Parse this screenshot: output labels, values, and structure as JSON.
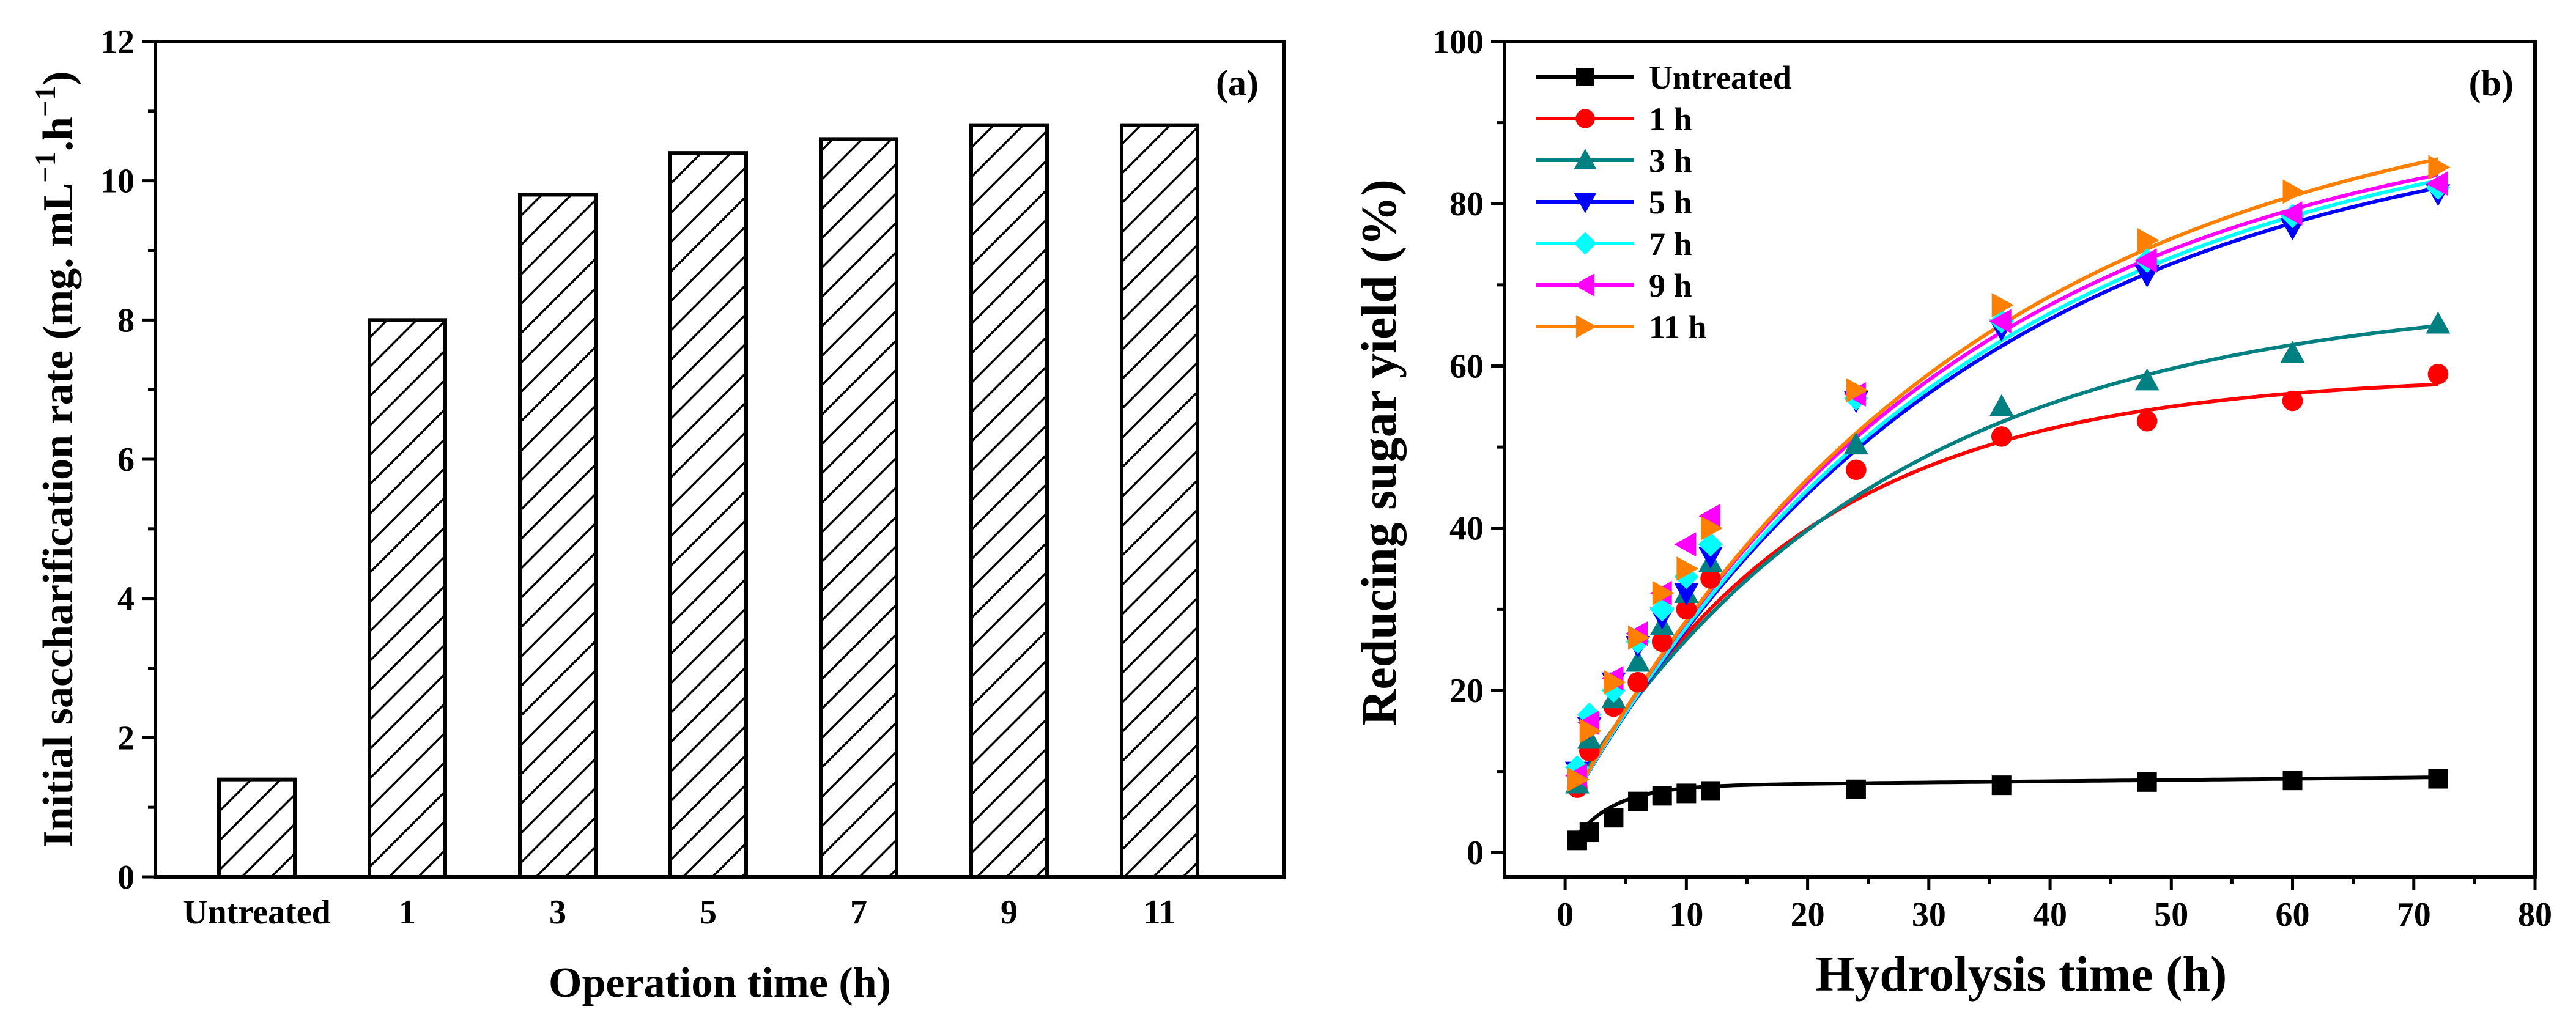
{
  "chart_data": [
    {
      "type": "bar",
      "panel_label": "(a)",
      "xlabel": "Operation time (h)",
      "ylabel": {
        "main": "Initial saccharification rate (mg. mL",
        "sup1": "−1",
        "mid": ".h",
        "sup2": "−1",
        "end": ")"
      },
      "categories": [
        "Untreated",
        "1",
        "3",
        "5",
        "7",
        "9",
        "11"
      ],
      "values": [
        1.4,
        8.0,
        9.8,
        10.4,
        10.6,
        10.8,
        10.8
      ],
      "ylim": [
        0,
        12
      ],
      "yticks": [
        0,
        2,
        4,
        6,
        8,
        10,
        12
      ],
      "bar_fill": "hatched",
      "grid": false
    },
    {
      "type": "line",
      "panel_label": "(b)",
      "xlabel": "Hydrolysis time (h)",
      "ylabel": "Reducing sugar yield (%)",
      "xlim": [
        -5,
        80
      ],
      "ylim": [
        -3,
        100
      ],
      "xticks": [
        0,
        10,
        20,
        30,
        40,
        50,
        60,
        70,
        80
      ],
      "yticks": [
        0,
        20,
        40,
        60,
        80,
        100
      ],
      "legend_position": "top-left",
      "grid": false,
      "x": [
        1,
        2,
        4,
        6,
        8,
        10,
        12,
        24,
        36,
        48,
        60,
        72
      ],
      "series": [
        {
          "name": "Untreated",
          "color": "#000000",
          "marker": "square",
          "values": [
            1.5,
            2.5,
            4.3,
            6.3,
            7.0,
            7.3,
            7.6,
            7.8,
            8.3,
            8.7,
            8.9,
            9.1
          ],
          "fit": {
            "a": 8.2,
            "k": 0.3,
            "c": 0.015
          }
        },
        {
          "name": "1 h",
          "color": "#ff0000",
          "marker": "circle",
          "values": [
            8.0,
            12.5,
            18.0,
            21.0,
            26.0,
            30.0,
            33.8,
            47.2,
            51.3,
            53.2,
            55.7,
            59.0
          ],
          "fit": {
            "a": 59.0,
            "k": 0.052,
            "b": 5.0
          }
        },
        {
          "name": "3 h",
          "color": "#008080",
          "marker": "triangle-up",
          "values": [
            8.5,
            14.0,
            19.0,
            23.5,
            28.0,
            32.0,
            35.8,
            50.3,
            55.0,
            58.2,
            61.6,
            65.2
          ],
          "fit": {
            "a": 69.0,
            "k": 0.038,
            "b": 6.5
          }
        },
        {
          "name": "5 h",
          "color": "#0000ff",
          "marker": "triangle-down",
          "values": [
            10.0,
            15.5,
            21.0,
            25.5,
            29.0,
            32.0,
            36.5,
            55.7,
            64.5,
            71.2,
            77.0,
            81.2
          ],
          "fit": {
            "a": 92.0,
            "k": 0.03,
            "b": 5.0
          }
        },
        {
          "name": "7 h",
          "color": "#00ffff",
          "marker": "diamond",
          "values": [
            10.5,
            17.0,
            20.0,
            26.0,
            30.0,
            34.0,
            38.0,
            56.0,
            65.5,
            73.0,
            78.5,
            82.0
          ],
          "fit": {
            "a": 93.0,
            "k": 0.03,
            "b": 5.0
          }
        },
        {
          "name": "9 h",
          "color": "#ff00ff",
          "marker": "triangle-left",
          "values": [
            9.5,
            16.0,
            21.5,
            27.0,
            32.0,
            38.0,
            41.5,
            56.5,
            65.5,
            73.0,
            78.8,
            82.5
          ],
          "fit": {
            "a": 93.0,
            "k": 0.031,
            "b": 5.0
          }
        },
        {
          "name": "11 h",
          "color": "#ff8000",
          "marker": "triangle-right",
          "values": [
            9.0,
            15.0,
            21.0,
            26.5,
            32.0,
            35.0,
            40.0,
            57.0,
            67.5,
            75.5,
            81.5,
            84.5
          ],
          "fit": {
            "a": 96.0,
            "k": 0.03,
            "b": 5.0
          }
        }
      ]
    }
  ]
}
